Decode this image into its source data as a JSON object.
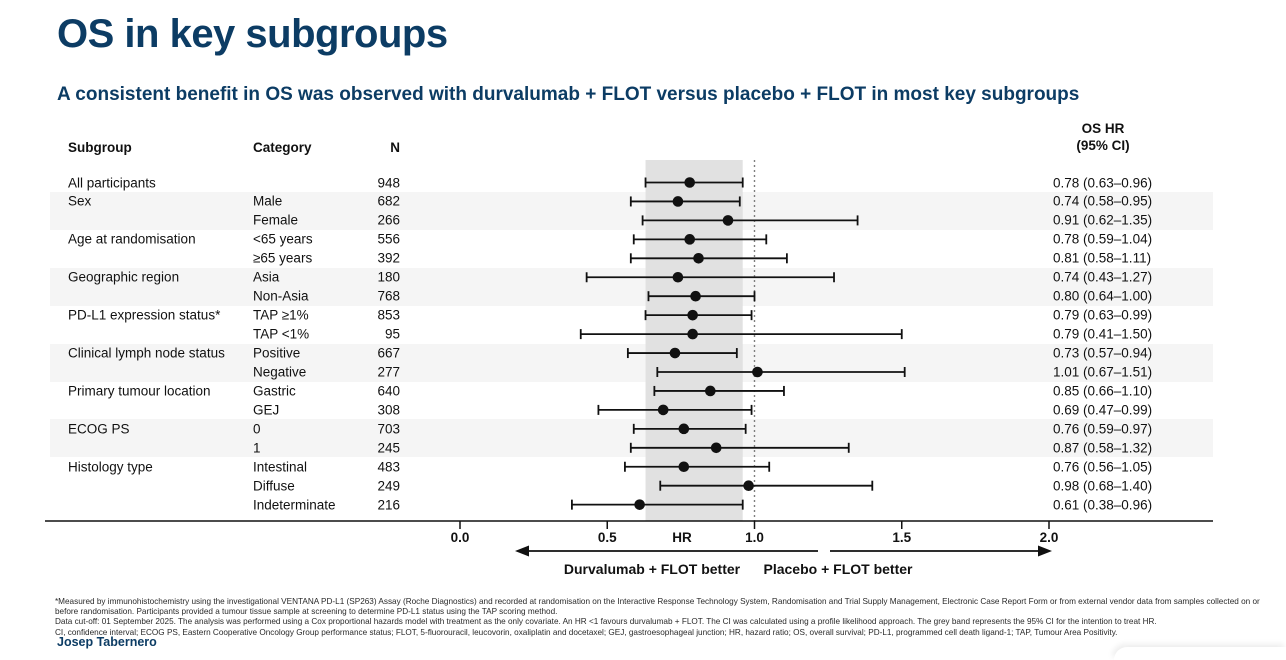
{
  "slide": {
    "title": "OS in key subgroups",
    "subtitle": "A consistent benefit in OS was observed with durvalumab + FLOT versus placebo + FLOT in most key subgroups",
    "presenter": "Josep Tabernero",
    "accent_color": "#0c3c64"
  },
  "table": {
    "headers": {
      "subgroup": "Subgroup",
      "category": "Category",
      "n": "N",
      "hr_line1": "OS HR",
      "hr_line2": "(95% CI)"
    }
  },
  "chart_data": {
    "type": "forest",
    "title": "OS in key subgroups",
    "xlabel": "HR",
    "axis": {
      "ticks": [
        "0.0",
        "0.5",
        "1.0",
        "1.5",
        "2.0"
      ],
      "label": "HR",
      "xlim": [
        0.0,
        2.0
      ],
      "reference_line": 1.0,
      "shaded_band_ci": [
        0.63,
        0.96
      ],
      "band_color": "#e1e1e1"
    },
    "arrows": {
      "left": "Durvalumab + FLOT better",
      "right": "Placebo + FLOT better"
    },
    "rows": [
      {
        "subgroup": "All participants",
        "category": "",
        "n": "948",
        "hr": 0.78,
        "ci_low": 0.63,
        "ci_high": 0.96,
        "hr_text": "0.78 (0.63–0.96)",
        "shaded": false
      },
      {
        "subgroup": "Sex",
        "category": "Male",
        "n": "682",
        "hr": 0.74,
        "ci_low": 0.58,
        "ci_high": 0.95,
        "hr_text": "0.74 (0.58–0.95)",
        "shaded": true
      },
      {
        "subgroup": "",
        "category": "Female",
        "n": "266",
        "hr": 0.91,
        "ci_low": 0.62,
        "ci_high": 1.35,
        "hr_text": "0.91 (0.62–1.35)",
        "shaded": true
      },
      {
        "subgroup": "Age at randomisation",
        "category": "<65 years",
        "n": "556",
        "hr": 0.78,
        "ci_low": 0.59,
        "ci_high": 1.04,
        "hr_text": "0.78 (0.59–1.04)",
        "shaded": false
      },
      {
        "subgroup": "",
        "category": "≥65 years",
        "n": "392",
        "hr": 0.81,
        "ci_low": 0.58,
        "ci_high": 1.11,
        "hr_text": "0.81 (0.58–1.11)",
        "shaded": false
      },
      {
        "subgroup": "Geographic region",
        "category": "Asia",
        "n": "180",
        "hr": 0.74,
        "ci_low": 0.43,
        "ci_high": 1.27,
        "hr_text": "0.74 (0.43–1.27)",
        "shaded": true
      },
      {
        "subgroup": "",
        "category": "Non-Asia",
        "n": "768",
        "hr": 0.8,
        "ci_low": 0.64,
        "ci_high": 1.0,
        "hr_text": "0.80 (0.64–1.00)",
        "shaded": true
      },
      {
        "subgroup": "PD-L1 expression status*",
        "category": "TAP ≥1%",
        "n": "853",
        "hr": 0.79,
        "ci_low": 0.63,
        "ci_high": 0.99,
        "hr_text": "0.79 (0.63–0.99)",
        "shaded": false
      },
      {
        "subgroup": "",
        "category": "TAP <1%",
        "n": "95",
        "hr": 0.79,
        "ci_low": 0.41,
        "ci_high": 1.5,
        "hr_text": "0.79 (0.41–1.50)",
        "shaded": false
      },
      {
        "subgroup": "Clinical lymph node status",
        "category": "Positive",
        "n": "667",
        "hr": 0.73,
        "ci_low": 0.57,
        "ci_high": 0.94,
        "hr_text": "0.73 (0.57–0.94)",
        "shaded": true
      },
      {
        "subgroup": "",
        "category": "Negative",
        "n": "277",
        "hr": 1.01,
        "ci_low": 0.67,
        "ci_high": 1.51,
        "hr_text": "1.01 (0.67–1.51)",
        "shaded": true
      },
      {
        "subgroup": "Primary tumour location",
        "category": "Gastric",
        "n": "640",
        "hr": 0.85,
        "ci_low": 0.66,
        "ci_high": 1.1,
        "hr_text": "0.85 (0.66–1.10)",
        "shaded": false
      },
      {
        "subgroup": "",
        "category": "GEJ",
        "n": "308",
        "hr": 0.69,
        "ci_low": 0.47,
        "ci_high": 0.99,
        "hr_text": "0.69 (0.47–0.99)",
        "shaded": false
      },
      {
        "subgroup": "ECOG PS",
        "category": "0",
        "n": "703",
        "hr": 0.76,
        "ci_low": 0.59,
        "ci_high": 0.97,
        "hr_text": "0.76 (0.59–0.97)",
        "shaded": true
      },
      {
        "subgroup": "",
        "category": "1",
        "n": "245",
        "hr": 0.87,
        "ci_low": 0.58,
        "ci_high": 1.32,
        "hr_text": "0.87 (0.58–1.32)",
        "shaded": true
      },
      {
        "subgroup": "Histology type",
        "category": "Intestinal",
        "n": "483",
        "hr": 0.76,
        "ci_low": 0.56,
        "ci_high": 1.05,
        "hr_text": "0.76 (0.56–1.05)",
        "shaded": false
      },
      {
        "subgroup": "",
        "category": "Diffuse",
        "n": "249",
        "hr": 0.98,
        "ci_low": 0.68,
        "ci_high": 1.4,
        "hr_text": "0.98 (0.68–1.40)",
        "shaded": false
      },
      {
        "subgroup": "",
        "category": "Indeterminate",
        "n": "216",
        "hr": 0.61,
        "ci_low": 0.38,
        "ci_high": 0.96,
        "hr_text": "0.61 (0.38–0.96)",
        "shaded": false
      }
    ]
  },
  "footnotes": [
    "*Measured by immunohistochemistry using the investigational VENTANA PD-L1 (SP263) Assay (Roche Diagnostics) and recorded at randomisation on the Interactive Response Technology System, Randomisation and Trial Supply Management, Electronic Case Report Form or from external vendor data from samples collected on or",
    "before randomisation. Participants provided a tumour tissue sample at screening to determine PD-L1 status using the TAP scoring method.",
    "Data cut-off: 01 September 2025. The analysis was performed using a Cox proportional hazards model with treatment as the only covariate. An HR <1 favours durvalumab + FLOT. The CI was calculated using a profile likelihood approach. The grey band represents the 95% CI for the intention to treat HR.",
    "CI, confidence interval; ECOG PS, Eastern Cooperative Oncology Group performance status; FLOT, 5-fluorouracil, leucovorin, oxaliplatin and docetaxel; GEJ, gastroesophageal junction; HR, hazard ratio; OS, overall survival; PD-L1, programmed cell death ligand-1; TAP, Tumour Area Positivity."
  ]
}
